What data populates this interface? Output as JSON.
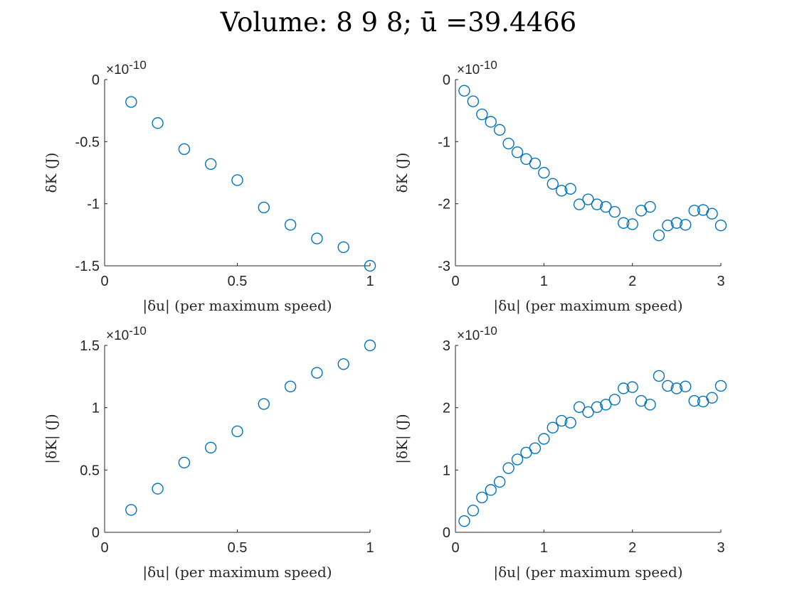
{
  "figure": {
    "title": "Volume:  8  9  8; ū =39.4466"
  },
  "chart_data": [
    {
      "type": "scatter",
      "xlabel": "|δu|  (per maximum speed)",
      "ylabel": "δK  (J)",
      "y_multiplier": "×10",
      "y_exponent": "-10",
      "xlim": [
        0,
        1
      ],
      "ylim": [
        -1.5,
        0
      ],
      "xticks": [
        0,
        0.5,
        1
      ],
      "xtick_labels": [
        "0",
        "0.5",
        "1"
      ],
      "yticks": [
        -1.5,
        -1,
        -0.5,
        0
      ],
      "ytick_labels": [
        "-1.5",
        "-1",
        "-0.5",
        "0"
      ],
      "x": [
        0.1,
        0.2,
        0.3,
        0.4,
        0.5,
        0.6,
        0.7,
        0.8,
        0.9,
        1.0
      ],
      "y": [
        -0.18,
        -0.35,
        -0.56,
        -0.68,
        -0.81,
        -1.03,
        -1.17,
        -1.28,
        -1.35,
        -1.5
      ],
      "marker_color": "#0072BD"
    },
    {
      "type": "scatter",
      "xlabel": "|δu|  (per maximum speed)",
      "ylabel": "δK  (J)",
      "y_multiplier": "×10",
      "y_exponent": "-10",
      "xlim": [
        0,
        3
      ],
      "ylim": [
        -3,
        0
      ],
      "xticks": [
        0,
        1,
        2,
        3
      ],
      "xtick_labels": [
        "0",
        "1",
        "2",
        "3"
      ],
      "yticks": [
        -3,
        -2,
        -1,
        0
      ],
      "ytick_labels": [
        "-3",
        "-2",
        "-1",
        "0"
      ],
      "x": [
        0.1,
        0.2,
        0.3,
        0.4,
        0.5,
        0.6,
        0.7,
        0.8,
        0.9,
        1.0,
        1.1,
        1.2,
        1.3,
        1.4,
        1.5,
        1.6,
        1.7,
        1.8,
        1.9,
        2.0,
        2.1,
        2.2,
        2.3,
        2.4,
        2.5,
        2.6,
        2.7,
        2.8,
        2.9,
        3.0
      ],
      "y": [
        -0.18,
        -0.35,
        -0.56,
        -0.68,
        -0.81,
        -1.03,
        -1.17,
        -1.28,
        -1.35,
        -1.5,
        -1.68,
        -1.79,
        -1.76,
        -2.01,
        -1.93,
        -2.01,
        -2.05,
        -2.13,
        -2.31,
        -2.33,
        -2.11,
        -2.05,
        -2.51,
        -2.35,
        -2.31,
        -2.34,
        -2.11,
        -2.1,
        -2.16,
        -2.35
      ],
      "marker_color": "#0072BD"
    },
    {
      "type": "scatter",
      "xlabel": "|δu|  (per maximum speed)",
      "ylabel": "|δK|  (J)",
      "y_multiplier": "×10",
      "y_exponent": "-10",
      "xlim": [
        0,
        1
      ],
      "ylim": [
        0,
        1.5
      ],
      "xticks": [
        0,
        0.5,
        1
      ],
      "xtick_labels": [
        "0",
        "0.5",
        "1"
      ],
      "yticks": [
        0,
        0.5,
        1,
        1.5
      ],
      "ytick_labels": [
        "0",
        "0.5",
        "1",
        "1.5"
      ],
      "x": [
        0.1,
        0.2,
        0.3,
        0.4,
        0.5,
        0.6,
        0.7,
        0.8,
        0.9,
        1.0
      ],
      "y": [
        0.18,
        0.35,
        0.56,
        0.68,
        0.81,
        1.03,
        1.17,
        1.28,
        1.35,
        1.5
      ],
      "marker_color": "#0072BD"
    },
    {
      "type": "scatter",
      "xlabel": "|δu|  (per maximum speed)",
      "ylabel": "|δK|  (J)",
      "y_multiplier": "×10",
      "y_exponent": "-10",
      "xlim": [
        0,
        3
      ],
      "ylim": [
        0,
        3
      ],
      "xticks": [
        0,
        1,
        2,
        3
      ],
      "xtick_labels": [
        "0",
        "1",
        "2",
        "3"
      ],
      "yticks": [
        0,
        1,
        2,
        3
      ],
      "ytick_labels": [
        "0",
        "1",
        "2",
        "3"
      ],
      "x": [
        0.1,
        0.2,
        0.3,
        0.4,
        0.5,
        0.6,
        0.7,
        0.8,
        0.9,
        1.0,
        1.1,
        1.2,
        1.3,
        1.4,
        1.5,
        1.6,
        1.7,
        1.8,
        1.9,
        2.0,
        2.1,
        2.2,
        2.3,
        2.4,
        2.5,
        2.6,
        2.7,
        2.8,
        2.9,
        3.0
      ],
      "y": [
        0.18,
        0.35,
        0.56,
        0.68,
        0.81,
        1.03,
        1.17,
        1.28,
        1.35,
        1.5,
        1.68,
        1.79,
        1.76,
        2.01,
        1.93,
        2.01,
        2.05,
        2.13,
        2.31,
        2.33,
        2.11,
        2.05,
        2.51,
        2.35,
        2.31,
        2.34,
        2.11,
        2.1,
        2.16,
        2.35
      ],
      "marker_color": "#0072BD"
    }
  ]
}
